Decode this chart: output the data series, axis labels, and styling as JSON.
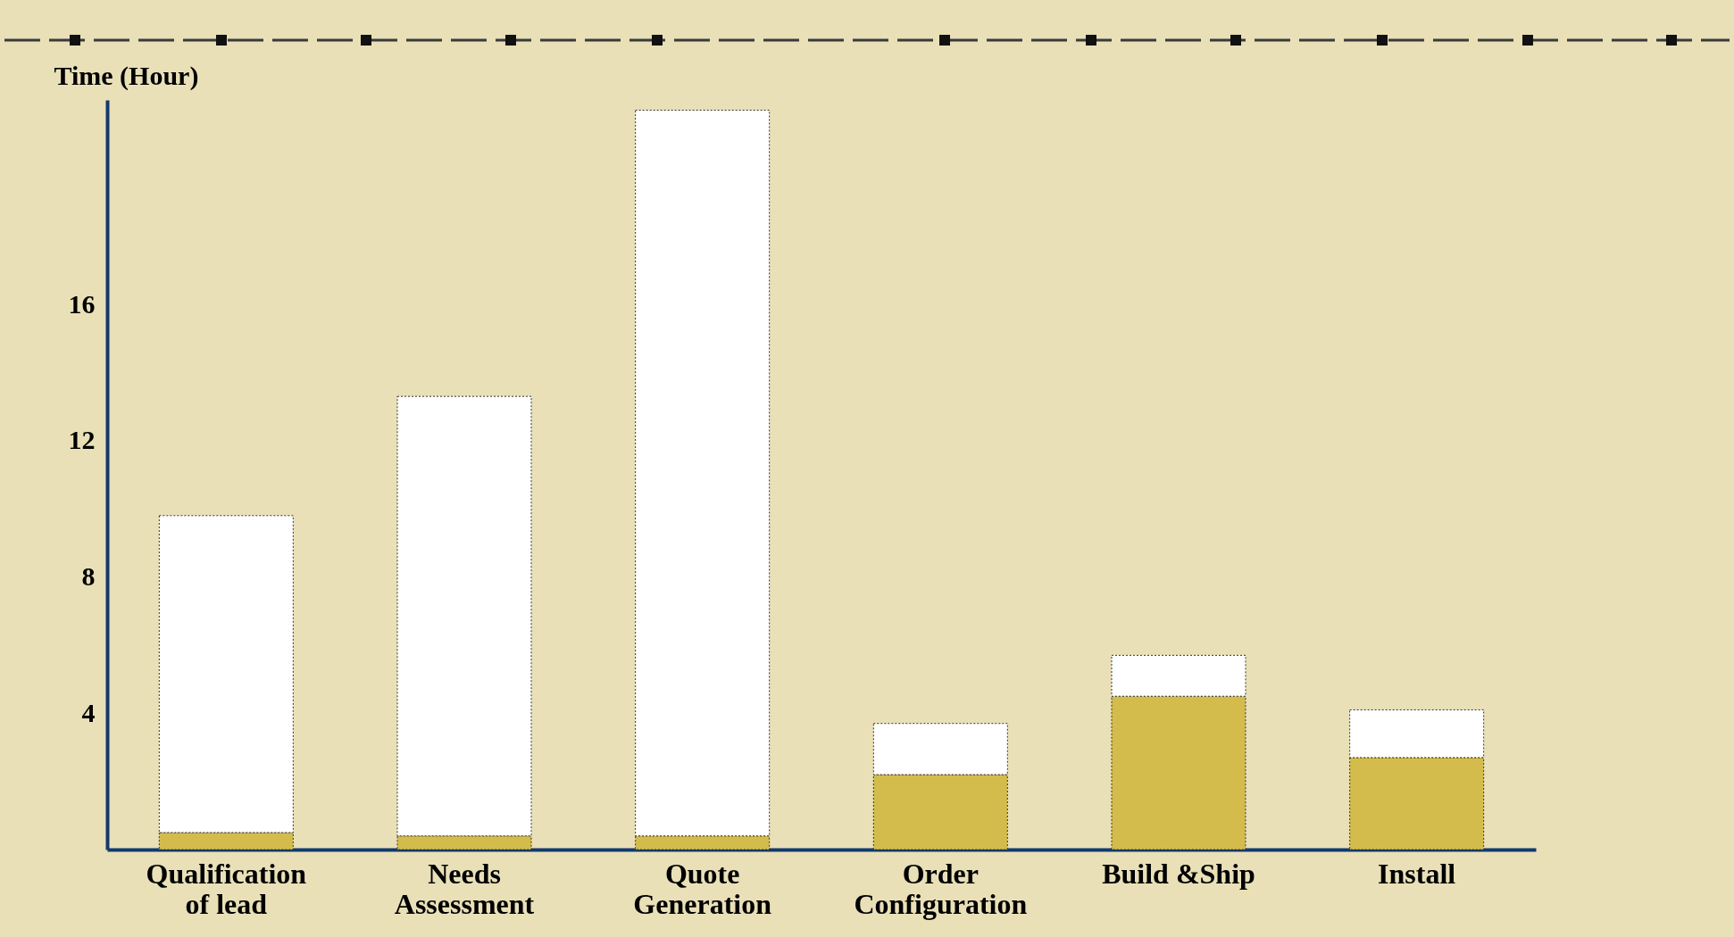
{
  "chart_data": {
    "type": "bar",
    "stacked": true,
    "ylabel": "Time (Hour)",
    "categories": [
      "Qualification of lead",
      "Needs Assessment",
      "Quote Generation",
      "Order Configuration",
      "Build &Ship",
      "Install"
    ],
    "series": [
      {
        "color": "#d4bc4c",
        "values": [
          0.5,
          0.4,
          0.4,
          2.2,
          4.5,
          2.7
        ]
      },
      {
        "color": "#ffffff",
        "values": [
          9.3,
          12.9,
          21.3,
          1.5,
          1.2,
          1.4
        ]
      }
    ],
    "ylim": [
      0,
      22
    ],
    "yticks": [
      4,
      8,
      12,
      16
    ],
    "grid": false,
    "legend": false
  }
}
